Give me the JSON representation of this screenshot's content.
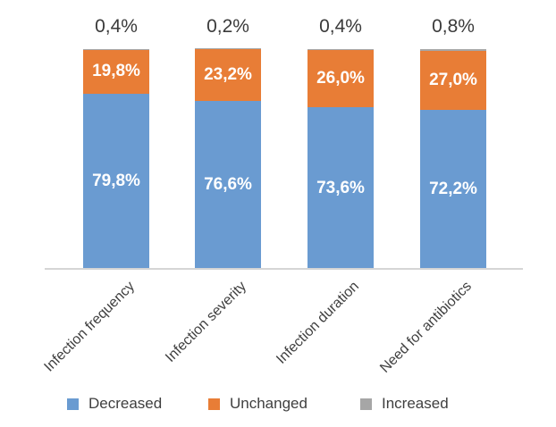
{
  "chart_data": {
    "type": "bar",
    "subtype": "stacked-percentage",
    "title": "",
    "xlabel": "",
    "ylabel": "",
    "ylim": [
      0,
      100
    ],
    "grid": false,
    "legend_position": "bottom",
    "categories": [
      "Infection frequency",
      "Infection severity",
      "Infection duration",
      "Need for antibiotics"
    ],
    "series": [
      {
        "name": "Decreased",
        "color": "#6a9bd1",
        "values": [
          79.8,
          76.6,
          73.6,
          72.2
        ],
        "value_labels": [
          "79,8%",
          "76,6%",
          "73,6%",
          "72,2%"
        ],
        "labels_position": "inside"
      },
      {
        "name": "Unchanged",
        "color": "#e87d36",
        "values": [
          19.8,
          23.2,
          26.0,
          27.0
        ],
        "value_labels": [
          "19,8%",
          "23,2%",
          "26,0%",
          "27,0%"
        ],
        "labels_position": "inside"
      },
      {
        "name": "Increased",
        "color": "#a6a6a6",
        "values": [
          0.4,
          0.2,
          0.4,
          0.8
        ],
        "value_labels": [
          "0,4%",
          "0,2%",
          "0,4%",
          "0,8%"
        ],
        "labels_position": "above"
      }
    ],
    "legend": [
      "Decreased",
      "Unchanged",
      "Increased"
    ]
  }
}
